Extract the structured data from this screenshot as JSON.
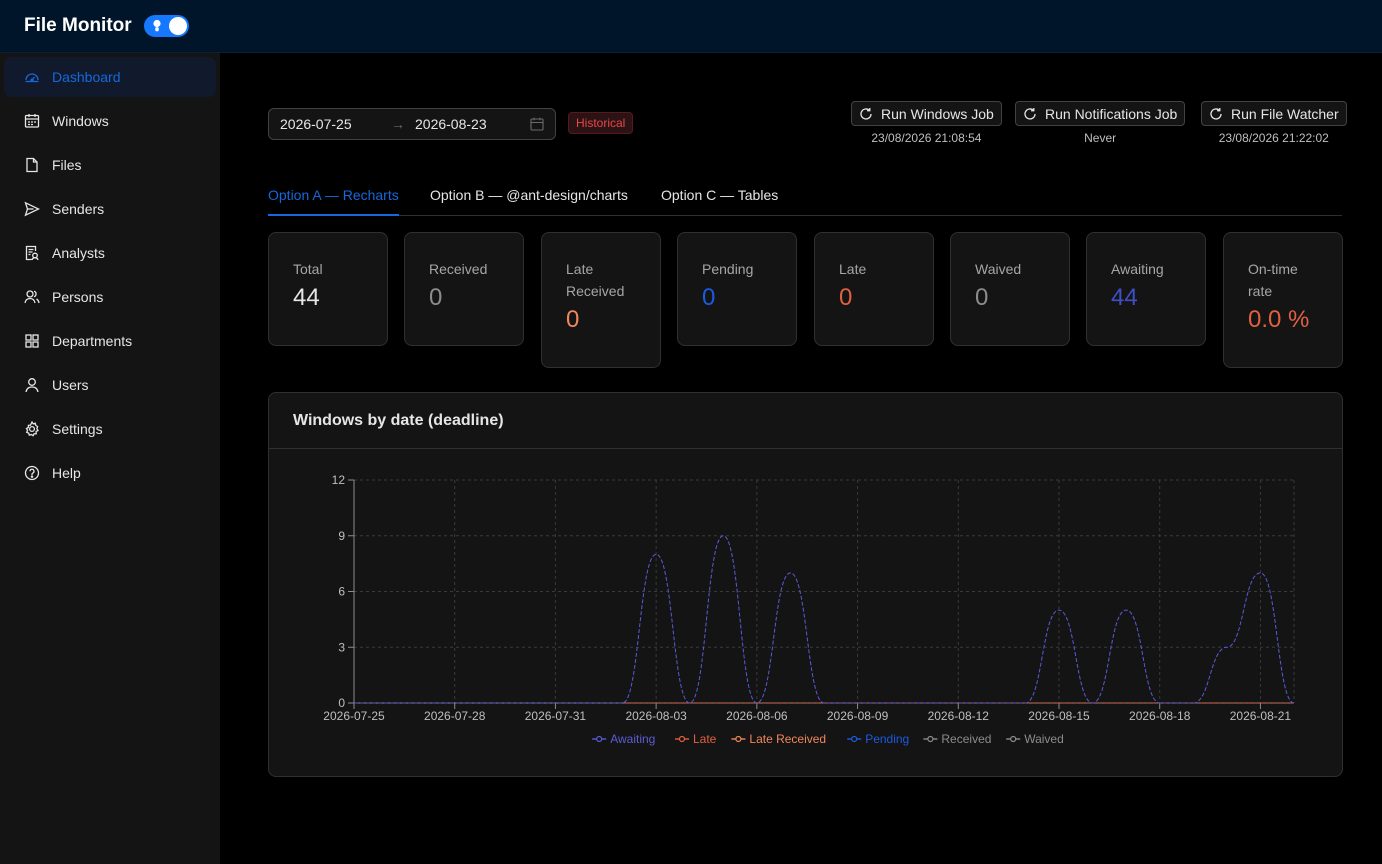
{
  "app": {
    "title": "File Monitor"
  },
  "sidebar": {
    "items": [
      {
        "label": "Dashboard",
        "icon": "dashboard-icon",
        "active": true
      },
      {
        "label": "Windows",
        "icon": "calendar-icon"
      },
      {
        "label": "Files",
        "icon": "file-icon"
      },
      {
        "label": "Senders",
        "icon": "send-icon"
      },
      {
        "label": "Analysts",
        "icon": "audit-icon"
      },
      {
        "label": "Persons",
        "icon": "team-icon"
      },
      {
        "label": "Departments",
        "icon": "appstore-icon"
      },
      {
        "label": "Users",
        "icon": "user-icon"
      },
      {
        "label": "Settings",
        "icon": "setting-icon"
      },
      {
        "label": "Help",
        "icon": "question-icon"
      }
    ]
  },
  "filters": {
    "start_date": "2026-07-25",
    "end_date": "2026-08-23",
    "arrow": "→",
    "tag": "Historical"
  },
  "jobs": [
    {
      "label": "Run Windows Job",
      "last_run": "23/08/2026 21:08:54"
    },
    {
      "label": "Run Notifications Job",
      "last_run": "Never"
    },
    {
      "label": "Run File Watcher",
      "last_run": "23/08/2026 21:22:02"
    }
  ],
  "tabs": [
    {
      "label": "Option A — Recharts",
      "active": true
    },
    {
      "label": "Option B — @ant-design/charts"
    },
    {
      "label": "Option C — Tables"
    }
  ],
  "stats": [
    {
      "label": "Total",
      "value": "44",
      "color": "#e6e6e6"
    },
    {
      "label": "Received",
      "value": "0",
      "color": "#8c8c8c"
    },
    {
      "label": "Late Received",
      "value": "0",
      "color": "#f0875b"
    },
    {
      "label": "Pending",
      "value": "0",
      "color": "#1c5ae0"
    },
    {
      "label": "Late",
      "value": "0",
      "color": "#e0603f"
    },
    {
      "label": "Waived",
      "value": "0",
      "color": "#8c8c8c"
    },
    {
      "label": "Awaiting",
      "value": "44",
      "color": "#3f4fc4"
    },
    {
      "label": "On-time rate",
      "value": "0.0 %",
      "color": "#e0603f"
    }
  ],
  "colors": {
    "awaiting": "#5b5bd6",
    "late": "#e0603f",
    "late_received": "#f0875b",
    "pending": "#1c5ae0",
    "received": "#8c8c8c",
    "waived": "#8c8c8c"
  },
  "chart_data": {
    "type": "line",
    "title": "Windows by date (deadline)",
    "x": [
      "2026-07-25",
      "2026-07-26",
      "2026-07-27",
      "2026-07-28",
      "2026-07-29",
      "2026-07-30",
      "2026-07-31",
      "2026-08-01",
      "2026-08-02",
      "2026-08-03",
      "2026-08-04",
      "2026-08-05",
      "2026-08-06",
      "2026-08-07",
      "2026-08-08",
      "2026-08-09",
      "2026-08-10",
      "2026-08-11",
      "2026-08-12",
      "2026-08-13",
      "2026-08-14",
      "2026-08-15",
      "2026-08-16",
      "2026-08-17",
      "2026-08-18",
      "2026-08-19",
      "2026-08-20",
      "2026-08-21",
      "2026-08-22"
    ],
    "x_ticks": [
      "2026-07-25",
      "2026-07-28",
      "2026-07-31",
      "2026-08-03",
      "2026-08-06",
      "2026-08-09",
      "2026-08-12",
      "2026-08-15",
      "2026-08-18",
      "2026-08-21"
    ],
    "ylim": [
      0,
      12
    ],
    "y_ticks": [
      0,
      3,
      6,
      9,
      12
    ],
    "grid": true,
    "legend_position": "bottom-center",
    "series": [
      {
        "name": "Awaiting",
        "color": "#5b5bd6",
        "values": [
          0,
          0,
          0,
          0,
          0,
          0,
          0,
          0,
          0,
          8,
          0,
          9,
          0,
          7,
          0,
          0,
          0,
          0,
          0,
          0,
          0,
          5,
          0,
          5,
          0,
          0,
          3,
          7,
          0
        ]
      },
      {
        "name": "Late",
        "color": "#e0603f",
        "values": [
          0,
          0,
          0,
          0,
          0,
          0,
          0,
          0,
          0,
          0,
          0,
          0,
          0,
          0,
          0,
          0,
          0,
          0,
          0,
          0,
          0,
          0,
          0,
          0,
          0,
          0,
          0,
          0,
          0
        ]
      },
      {
        "name": "Late Received",
        "color": "#f0875b",
        "values": [
          0,
          0,
          0,
          0,
          0,
          0,
          0,
          0,
          0,
          0,
          0,
          0,
          0,
          0,
          0,
          0,
          0,
          0,
          0,
          0,
          0,
          0,
          0,
          0,
          0,
          0,
          0,
          0,
          0
        ]
      },
      {
        "name": "Pending",
        "color": "#1c5ae0",
        "values": [
          0,
          0,
          0,
          0,
          0,
          0,
          0,
          0,
          0,
          0,
          0,
          0,
          0,
          0,
          0,
          0,
          0,
          0,
          0,
          0,
          0,
          0,
          0,
          0,
          0,
          0,
          0,
          0,
          0
        ]
      },
      {
        "name": "Received",
        "color": "#8c8c8c",
        "values": [
          0,
          0,
          0,
          0,
          0,
          0,
          0,
          0,
          0,
          0,
          0,
          0,
          0,
          0,
          0,
          0,
          0,
          0,
          0,
          0,
          0,
          0,
          0,
          0,
          0,
          0,
          0,
          0,
          0
        ]
      },
      {
        "name": "Waived",
        "color": "#8c8c8c",
        "values": [
          0,
          0,
          0,
          0,
          0,
          0,
          0,
          0,
          0,
          0,
          0,
          0,
          0,
          0,
          0,
          0,
          0,
          0,
          0,
          0,
          0,
          0,
          0,
          0,
          0,
          0,
          0,
          0,
          0
        ]
      }
    ]
  }
}
